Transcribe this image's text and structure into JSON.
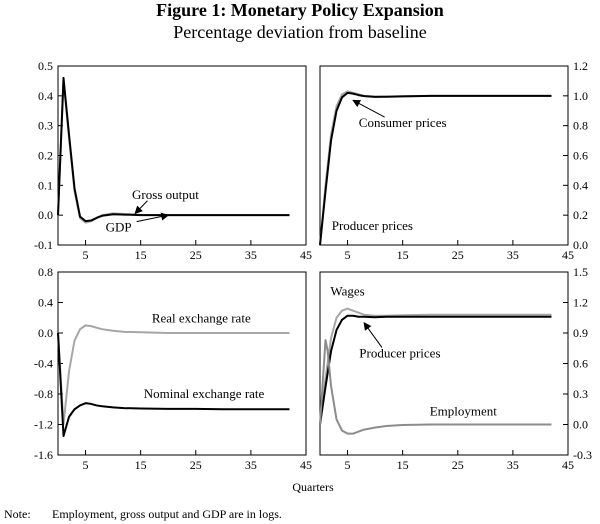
{
  "figure": {
    "title": "Figure 1: Monetary Policy Expansion",
    "subtitle": "Percentage deviation from baseline",
    "xlabel": "Quarters",
    "note_label": "Note:",
    "note_text": "Employment, gross output and GDP are in logs."
  },
  "chart_data": [
    {
      "type": "line",
      "panel": "top-left",
      "x_ticks": [
        5,
        15,
        25,
        35,
        45
      ],
      "xlim": [
        0,
        45
      ],
      "y_axis_side": "left",
      "ylim": [
        -0.1,
        0.5
      ],
      "y_ticks": [
        -0.1,
        0.0,
        0.1,
        0.2,
        0.3,
        0.4,
        0.5
      ],
      "y_tick_labels": [
        "-0.1",
        "0.0",
        "0.1",
        "0.2",
        "0.3",
        "0.4",
        "0.5"
      ],
      "series": [
        {
          "name": "Gross output",
          "color": "#a6a6a6",
          "x": [
            0,
            1,
            2,
            3,
            4,
            5,
            6,
            7,
            8,
            10,
            12,
            15,
            20,
            25,
            30,
            35,
            42
          ],
          "y": [
            0.0,
            0.45,
            0.26,
            0.08,
            -0.01,
            -0.025,
            -0.02,
            -0.01,
            0.0,
            0.006,
            0.004,
            0.001,
            0.0,
            0.0,
            0.0,
            0.0,
            0.0
          ]
        },
        {
          "name": "GDP",
          "color": "#000000",
          "x": [
            0,
            1,
            2,
            3,
            4,
            5,
            6,
            7,
            8,
            10,
            12,
            15,
            20,
            25,
            30,
            35,
            42
          ],
          "y": [
            0.0,
            0.46,
            0.27,
            0.09,
            -0.005,
            -0.02,
            -0.018,
            -0.009,
            -0.002,
            0.003,
            0.002,
            0.0,
            0.0,
            0.0,
            0.0,
            0.0,
            0.0
          ]
        }
      ],
      "annotations": [
        {
          "text": "Gross output",
          "x": 19.5,
          "y": 0.055,
          "arrow_to": [
            14,
            0.006
          ]
        },
        {
          "text": "GDP",
          "x": 11,
          "y": -0.055,
          "arrow_to": [
            20,
            0.0
          ]
        }
      ]
    },
    {
      "type": "line",
      "panel": "top-right",
      "x_ticks": [
        5,
        15,
        25,
        35,
        45
      ],
      "xlim": [
        0,
        45
      ],
      "y_axis_side": "right",
      "ylim": [
        0.0,
        1.2
      ],
      "y_ticks": [
        0.0,
        0.2,
        0.4,
        0.6,
        0.8,
        1.0,
        1.2
      ],
      "y_tick_labels": [
        "0.0",
        "0.2",
        "0.4",
        "0.6",
        "0.8",
        "1.0",
        "1.2"
      ],
      "series": [
        {
          "name": "Consumer prices",
          "color": "#a6a6a6",
          "x": [
            0,
            1,
            2,
            3,
            4,
            5,
            6,
            7,
            8,
            10,
            12,
            15,
            20,
            30,
            42
          ],
          "y": [
            0.0,
            0.4,
            0.74,
            0.93,
            1.01,
            1.03,
            1.02,
            1.01,
            1.0,
            0.995,
            0.995,
            0.997,
            1.0,
            1.0,
            1.0
          ]
        },
        {
          "name": "Producer prices",
          "color": "#000000",
          "x": [
            0,
            1,
            2,
            3,
            4,
            5,
            6,
            7,
            8,
            10,
            12,
            15,
            20,
            30,
            42
          ],
          "y": [
            0.0,
            0.36,
            0.7,
            0.9,
            0.99,
            1.02,
            1.015,
            1.005,
            0.998,
            0.993,
            0.994,
            0.996,
            1.0,
            1.0,
            1.0
          ]
        }
      ],
      "annotations": [
        {
          "text": "Consumer prices",
          "x": 15,
          "y": 0.79,
          "arrow_to": [
            6,
            0.97
          ]
        },
        {
          "text": "Producer prices",
          "x": 9.5,
          "y": 0.1,
          "arrow_to": null
        }
      ]
    },
    {
      "type": "line",
      "panel": "bottom-left",
      "x_ticks": [
        5,
        15,
        25,
        35,
        45
      ],
      "xlim": [
        0,
        45
      ],
      "y_axis_side": "left",
      "ylim": [
        -1.6,
        0.8
      ],
      "y_ticks": [
        -1.6,
        -1.2,
        -0.8,
        -0.4,
        0.0,
        0.4,
        0.8
      ],
      "y_tick_labels": [
        "-1.6",
        "-1.2",
        "-0.8",
        "-0.4",
        "0.0",
        "0.4",
        "0.8"
      ],
      "series": [
        {
          "name": "Real exchange rate",
          "color": "#a6a6a6",
          "x": [
            0,
            1,
            2,
            3,
            4,
            5,
            6,
            7,
            8,
            10,
            12,
            15,
            20,
            30,
            42
          ],
          "y": [
            0.0,
            -1.2,
            -0.5,
            -0.1,
            0.05,
            0.1,
            0.09,
            0.07,
            0.05,
            0.03,
            0.015,
            0.01,
            0.0,
            0.0,
            0.0
          ]
        },
        {
          "name": "Nominal exchange rate",
          "color": "#000000",
          "x": [
            0,
            1,
            2,
            3,
            4,
            5,
            6,
            7,
            8,
            10,
            12,
            15,
            20,
            25,
            30,
            42
          ],
          "y": [
            0.0,
            -1.35,
            -1.1,
            -1.0,
            -0.95,
            -0.92,
            -0.93,
            -0.95,
            -0.96,
            -0.975,
            -0.985,
            -0.99,
            -0.995,
            -0.995,
            -1.0,
            -1.0
          ]
        }
      ],
      "annotations": [
        {
          "text": "Real exchange rate",
          "x": 26,
          "y": 0.14,
          "arrow_to": null
        },
        {
          "text": "Nominal exchange rate",
          "x": 26.5,
          "y": -0.85,
          "arrow_to": null
        }
      ]
    },
    {
      "type": "line",
      "panel": "bottom-right",
      "x_ticks": [
        5,
        15,
        25,
        35,
        45
      ],
      "xlim": [
        0,
        45
      ],
      "y_axis_side": "right",
      "ylim": [
        -0.3,
        1.5
      ],
      "y_ticks": [
        -0.3,
        0.0,
        0.3,
        0.6,
        0.9,
        1.2,
        1.5
      ],
      "y_tick_labels": [
        "-0.3",
        "0.0",
        "0.3",
        "0.6",
        "0.9",
        "1.2",
        "1.5"
      ],
      "series": [
        {
          "name": "Wages",
          "color": "#a6a6a6",
          "x": [
            0,
            1,
            2,
            3,
            4,
            5,
            6,
            7,
            8,
            10,
            12,
            15,
            20,
            30,
            42
          ],
          "y": [
            0.0,
            0.45,
            0.85,
            1.05,
            1.12,
            1.14,
            1.12,
            1.1,
            1.08,
            1.07,
            1.07,
            1.075,
            1.08,
            1.08,
            1.08
          ]
        },
        {
          "name": "Producer prices",
          "color": "#000000",
          "x": [
            0,
            1,
            2,
            3,
            4,
            5,
            6,
            7,
            8,
            10,
            12,
            15,
            20,
            30,
            42
          ],
          "y": [
            0.0,
            0.37,
            0.72,
            0.93,
            1.03,
            1.07,
            1.07,
            1.06,
            1.06,
            1.055,
            1.06,
            1.06,
            1.06,
            1.06,
            1.06
          ]
        },
        {
          "name": "Employment",
          "color": "#8c8c8c",
          "x": [
            0,
            1,
            1.4,
            2,
            3,
            4,
            5,
            6,
            7,
            8,
            10,
            12,
            15,
            20,
            25,
            30,
            42
          ],
          "y": [
            0.0,
            0.83,
            0.72,
            0.38,
            0.05,
            -0.06,
            -0.09,
            -0.09,
            -0.07,
            -0.05,
            -0.03,
            -0.015,
            -0.005,
            0.0,
            0.0,
            0.0,
            0.0
          ]
        }
      ],
      "annotations": [
        {
          "text": "Wages",
          "x": 5,
          "y": 1.27,
          "arrow_to": null
        },
        {
          "text": "Producer prices",
          "x": 14.5,
          "y": 0.66,
          "arrow_to": [
            8,
            1.0
          ]
        },
        {
          "text": "Employment",
          "x": 26,
          "y": 0.09,
          "arrow_to": null
        }
      ]
    }
  ]
}
